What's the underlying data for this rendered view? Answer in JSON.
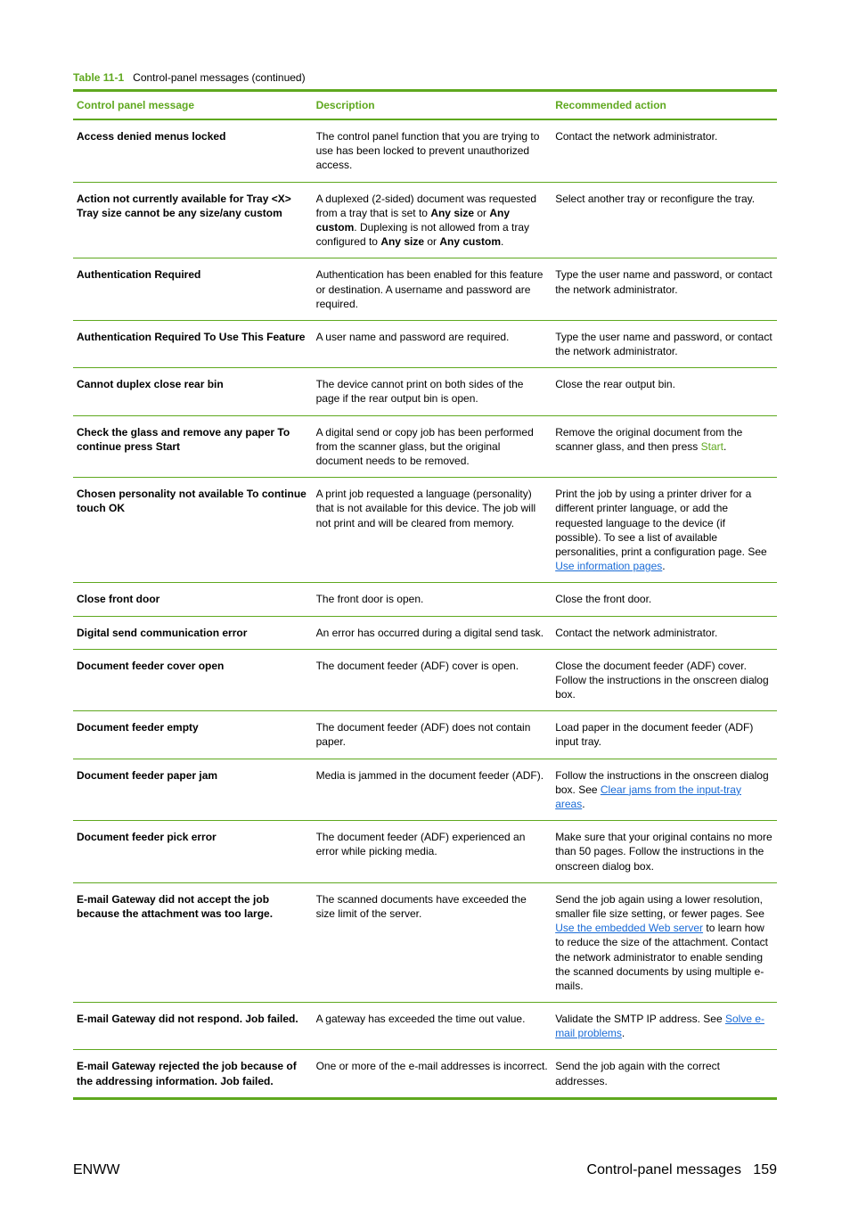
{
  "caption": {
    "num": "Table 11-1",
    "title": "Control-panel messages (continued)"
  },
  "header": {
    "c1": "Control panel message",
    "c2": "Description",
    "c3": "Recommended action"
  },
  "rows": [
    {
      "msg": "Access denied menus locked",
      "desc": [
        {
          "t": "The control panel function that you are trying to use has been locked to prevent unauthorized access."
        }
      ],
      "act": [
        {
          "t": "Contact the network administrator."
        }
      ]
    },
    {
      "msg": "Action not currently available for Tray <X> Tray size cannot be any size/any custom",
      "desc": [
        {
          "t": "A duplexed (2-sided) document was requested from a tray that is set to "
        },
        {
          "t": "Any size",
          "b": true
        },
        {
          "t": " or "
        },
        {
          "t": "Any custom",
          "b": true
        },
        {
          "t": ". Duplexing is not allowed from a tray configured to "
        },
        {
          "t": "Any size",
          "b": true
        },
        {
          "t": " or "
        },
        {
          "t": "Any custom",
          "b": true
        },
        {
          "t": "."
        }
      ],
      "act": [
        {
          "t": "Select another tray or reconfigure the tray."
        }
      ]
    },
    {
      "msg": "Authentication Required",
      "desc": [
        {
          "t": "Authentication has been enabled for this feature or destination. A username and password are required."
        }
      ],
      "act": [
        {
          "t": "Type the user name and password, or contact the network administrator."
        }
      ]
    },
    {
      "msg": "Authentication Required To Use This Feature",
      "desc": [
        {
          "t": "A user name and password are required."
        }
      ],
      "act": [
        {
          "t": "Type the user name and password, or contact the network administrator."
        }
      ]
    },
    {
      "msg": "Cannot duplex close rear bin",
      "desc": [
        {
          "t": "The device cannot print on both sides of the page if the rear output bin is open."
        }
      ],
      "act": [
        {
          "t": "Close the rear output bin."
        }
      ]
    },
    {
      "msg": "Check the glass and remove any paper To continue press Start",
      "desc": [
        {
          "t": "A digital send or copy job has been performed from the scanner glass, but the original document needs to be removed."
        }
      ],
      "act": [
        {
          "t": "Remove the original document from the scanner glass, and then press "
        },
        {
          "t": "Start",
          "g": true
        },
        {
          "t": "."
        }
      ]
    },
    {
      "msg": "Chosen personality not available To continue touch OK",
      "desc": [
        {
          "t": "A print job requested a language (personality) that is not available for this device. The job will not print and will be cleared from memory."
        }
      ],
      "act": [
        {
          "t": "Print the job by using a printer driver for a different printer language, or add the requested language to the device (if possible). To see a list of available personalities, print a configuration page. See "
        },
        {
          "t": "Use information pages",
          "a": true
        },
        {
          "t": "."
        }
      ]
    },
    {
      "msg": "Close front door",
      "desc": [
        {
          "t": "The front door is open."
        }
      ],
      "act": [
        {
          "t": "Close the front door."
        }
      ]
    },
    {
      "msg": "Digital send communication error",
      "desc": [
        {
          "t": "An error has occurred during a digital send task."
        }
      ],
      "act": [
        {
          "t": "Contact the network administrator."
        }
      ]
    },
    {
      "msg": "Document feeder cover open",
      "desc": [
        {
          "t": "The document feeder (ADF) cover is open."
        }
      ],
      "act": [
        {
          "t": "Close the document feeder (ADF) cover. Follow the instructions in the onscreen dialog box."
        }
      ]
    },
    {
      "msg": "Document feeder empty",
      "desc": [
        {
          "t": "The document feeder (ADF) does not contain paper."
        }
      ],
      "act": [
        {
          "t": "Load paper in the document feeder (ADF) input tray."
        }
      ]
    },
    {
      "msg": "Document feeder paper jam",
      "desc": [
        {
          "t": "Media is jammed in the document feeder (ADF)."
        }
      ],
      "act": [
        {
          "t": "Follow the instructions in the onscreen dialog box. See "
        },
        {
          "t": "Clear jams from the input-tray areas",
          "a": true
        },
        {
          "t": "."
        }
      ]
    },
    {
      "msg": "Document feeder pick error",
      "desc": [
        {
          "t": "The document feeder (ADF) experienced an error while picking media."
        }
      ],
      "act": [
        {
          "t": "Make sure that your original contains no more than 50 pages. Follow the instructions in the onscreen dialog box."
        }
      ]
    },
    {
      "msg": "E-mail Gateway did not accept the job because the attachment was too large.",
      "desc": [
        {
          "t": "The scanned documents have exceeded the size limit of the server."
        }
      ],
      "act": [
        {
          "t": "Send the job again using a lower resolution, smaller file size setting, or fewer pages. See "
        },
        {
          "t": "Use the embedded Web server",
          "a": true
        },
        {
          "t": " to learn how to reduce the size of the attachment. Contact the network administrator to enable sending the scanned documents by using multiple e-mails."
        }
      ]
    },
    {
      "msg": "E-mail Gateway did not respond. Job failed.",
      "desc": [
        {
          "t": "A gateway has exceeded the time out value."
        }
      ],
      "act": [
        {
          "t": "Validate the SMTP IP address. See "
        },
        {
          "t": "Solve e-mail problems",
          "a": true
        },
        {
          "t": "."
        }
      ]
    },
    {
      "msg": "E-mail Gateway rejected the job because of the addressing information. Job failed.",
      "desc": [
        {
          "t": "One or more of the e-mail addresses is incorrect."
        }
      ],
      "act": [
        {
          "t": "Send the job again with the correct addresses."
        }
      ]
    }
  ],
  "footer": {
    "left": "ENWW",
    "rightLabel": "Control-panel messages",
    "pagenum": "159"
  }
}
